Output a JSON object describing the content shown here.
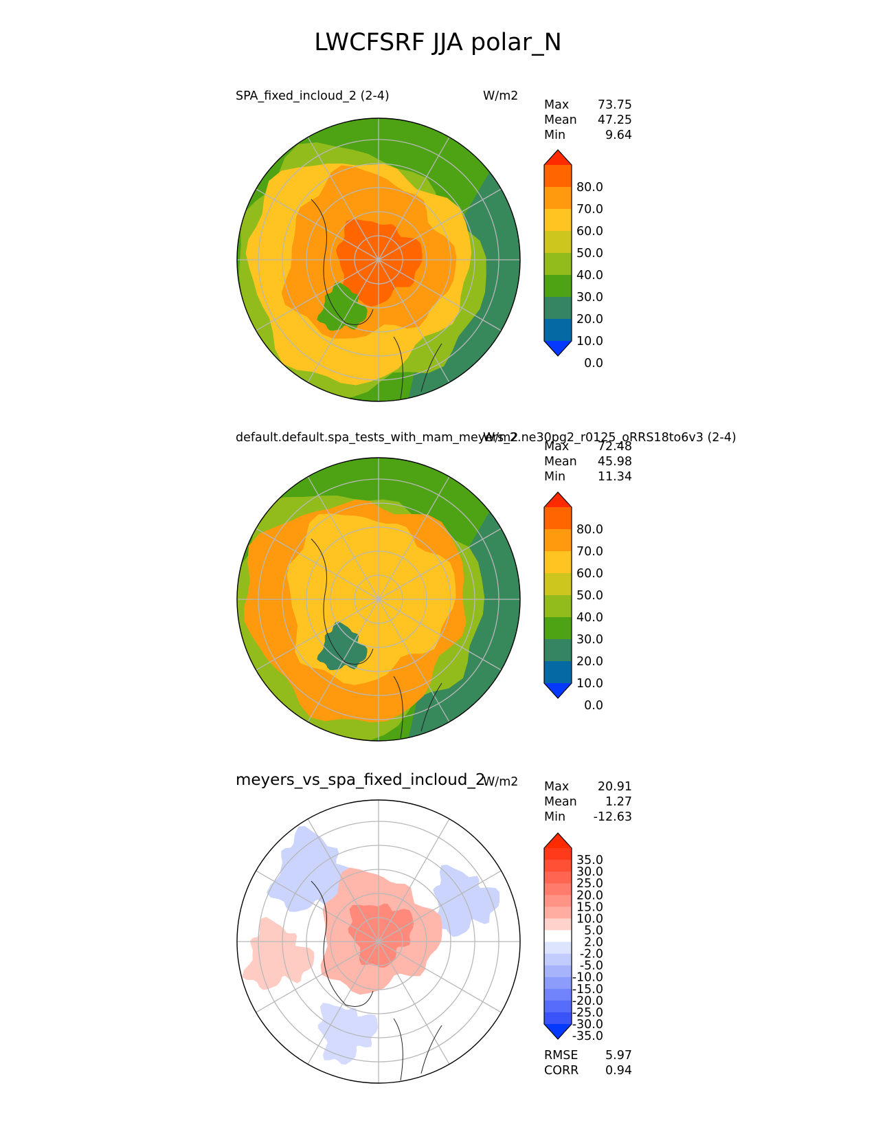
{
  "figure_title": "LWCFSRF JJA polar_N",
  "panels": [
    {
      "title": "SPA_fixed_incloud_2 (2-4)",
      "units": "W/m2",
      "stats": [
        {
          "label": "Max",
          "value": "73.75"
        },
        {
          "label": "Mean",
          "value": "47.25"
        },
        {
          "label": "Min",
          "value": "9.64"
        }
      ]
    },
    {
      "title": "default.default.spa_tests_with_mam_meyers_2.ne30pg2_r0125_oRRS18to6v3 (2-4)",
      "units": "W/m2",
      "stats": [
        {
          "label": "Max",
          "value": "72.48"
        },
        {
          "label": "Mean",
          "value": "45.98"
        },
        {
          "label": "Min",
          "value": "11.34"
        }
      ]
    },
    {
      "title": "meyers_vs_spa_fixed_incloud_2",
      "units": "W/m2",
      "stats": [
        {
          "label": "Max",
          "value": "20.91"
        },
        {
          "label": "Mean",
          "value": "1.27"
        },
        {
          "label": "Min",
          "value": "-12.63"
        }
      ],
      "extra_stats": [
        {
          "label": "RMSE",
          "value": "5.97"
        },
        {
          "label": "CORR",
          "value": "0.94"
        }
      ]
    }
  ],
  "colorbars": {
    "fields": {
      "labels": [
        "80.0",
        "70.0",
        "60.0",
        "50.0",
        "40.0",
        "30.0",
        "20.0",
        "10.0",
        "0.0"
      ],
      "colors": [
        "#ff2b00",
        "#ff6600",
        "#ff9a0e",
        "#ffc421",
        "#ccc61f",
        "#92bb1c",
        "#4ea315",
        "#358563",
        "#056aa3",
        "#0639ff"
      ]
    },
    "difference": {
      "labels": [
        "35.0",
        "30.0",
        "25.0",
        "20.0",
        "15.0",
        "10.0",
        "5.0",
        "2.0",
        "-2.0",
        "-5.0",
        "-10.0",
        "-15.0",
        "-20.0",
        "-25.0",
        "-30.0",
        "-35.0"
      ],
      "colors": [
        "#ff2b00",
        "#ff3a1b",
        "#ff5035",
        "#ff6550",
        "#ff7b6b",
        "#ff9385",
        "#ffaca1",
        "#ffd3cc",
        "#ffffff",
        "#dde4fe",
        "#c2ccfd",
        "#a7b4fc",
        "#8c9cfb",
        "#7184fb",
        "#566cfa",
        "#3b54fa",
        "#0639ff"
      ]
    }
  },
  "map_colors": {
    "field_1": {
      "outer": "#4ea315",
      "ring": "#ffc421",
      "inner": "#ff9a0e",
      "core": "#ff6600",
      "greenland": "#4ea315"
    },
    "field_2": {
      "outer": "#4ea315",
      "ring": "#ff9a0e",
      "inner": "#ffc421",
      "core": "#ffc421",
      "greenland": "#358563"
    },
    "difference": {
      "background": "#ffffff",
      "positive": "#ffb6ab",
      "positive_strong": "#ff8a7c",
      "negative": "#c2ccfd"
    }
  }
}
